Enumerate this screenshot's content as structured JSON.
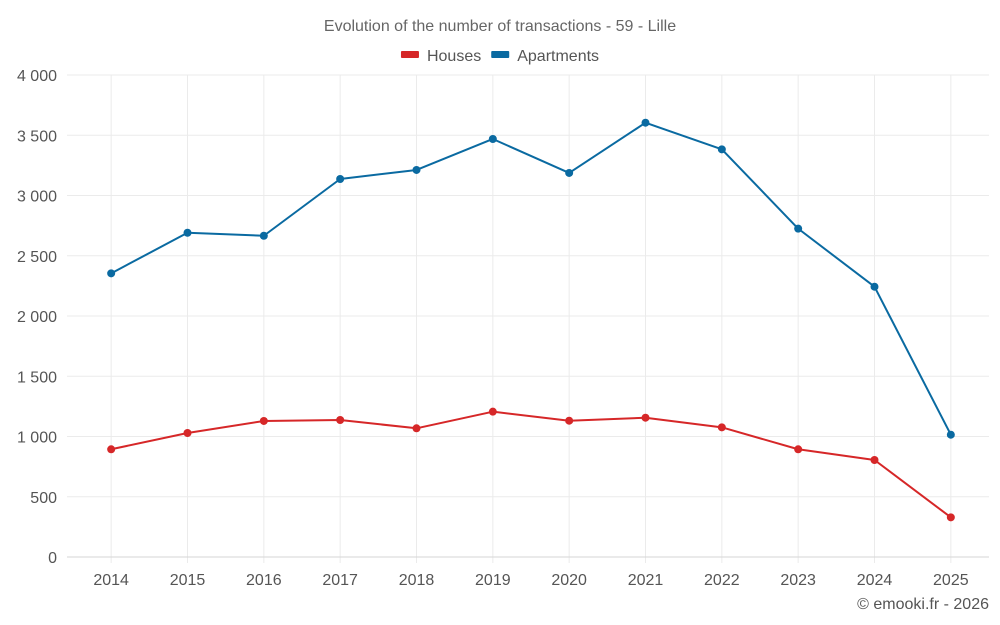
{
  "chart_data": {
    "type": "line",
    "title": "Evolution of the number of transactions - 59 - Lille",
    "xlabel": "",
    "ylabel": "",
    "x": [
      "2014",
      "2015",
      "2016",
      "2017",
      "2018",
      "2019",
      "2020",
      "2021",
      "2022",
      "2023",
      "2024",
      "2025"
    ],
    "ylim": [
      0,
      4000
    ],
    "yticks": [
      0,
      500,
      1000,
      1500,
      2000,
      2500,
      3000,
      3500,
      4000
    ],
    "ytick_labels": [
      "0",
      "500",
      "1 000",
      "1 500",
      "2 000",
      "2 500",
      "3 000",
      "3 500",
      "4 000"
    ],
    "grid": true,
    "legend_position": "top-center",
    "series": [
      {
        "name": "Houses",
        "color": "#d62728",
        "values": [
          894,
          1029,
          1129,
          1137,
          1068,
          1206,
          1131,
          1156,
          1076,
          894,
          805,
          329
        ]
      },
      {
        "name": "Apartments",
        "color": "#0a6aa1",
        "values": [
          2354,
          2691,
          2666,
          3137,
          3212,
          3469,
          3187,
          3604,
          3383,
          2725,
          2243,
          1015
        ]
      }
    ],
    "credit": "© emooki.fr - 2026"
  }
}
